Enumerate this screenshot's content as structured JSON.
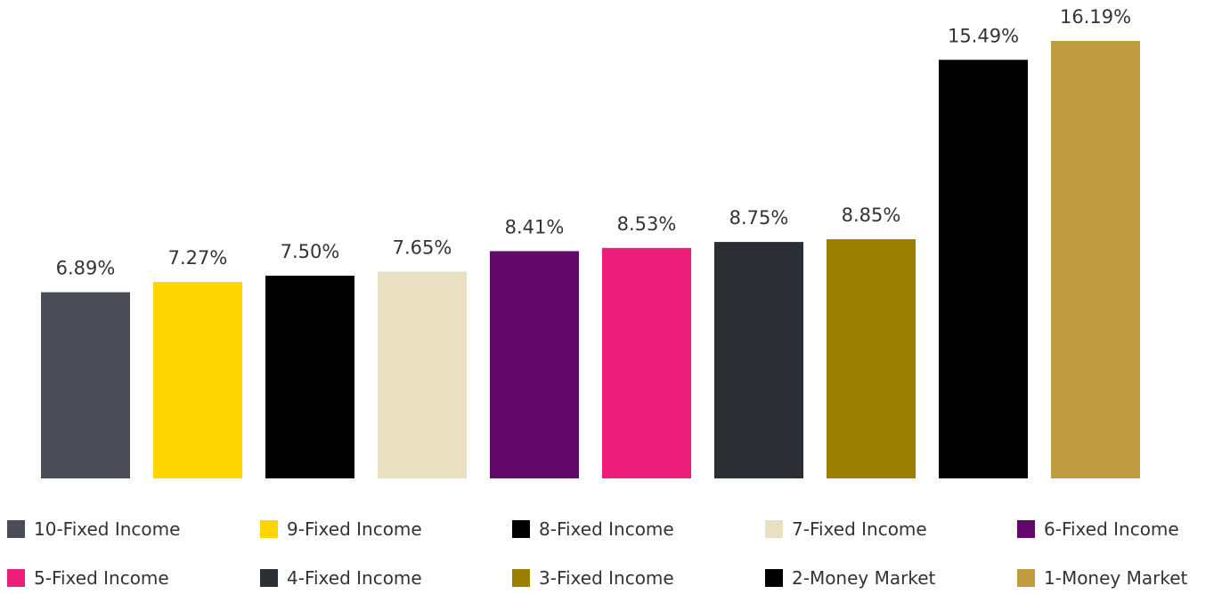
{
  "chart_data": {
    "type": "bar",
    "title": "",
    "xlabel": "",
    "ylabel": "",
    "categories": [
      "10-Fixed Income",
      "9-Fixed Income",
      "8-Fixed Income",
      "7-Fixed Income",
      "6-Fixed Income",
      "5-Fixed Income",
      "4-Fixed Income",
      "3-Fixed Income",
      "2-Money Market",
      "1-Money Market"
    ],
    "values": [
      6.89,
      7.27,
      7.5,
      7.65,
      8.41,
      8.53,
      8.75,
      8.85,
      15.49,
      16.19
    ],
    "value_labels": [
      "6.89%",
      "7.27%",
      "7.50%",
      "7.65%",
      "8.41%",
      "8.53%",
      "8.75%",
      "8.85%",
      "15.49%",
      "16.19%"
    ],
    "colors": [
      "#4a4d55",
      "#ffd600",
      "#000000",
      "#e9dfc1",
      "#62086b",
      "#ec1e79",
      "#2b2e33",
      "#9a7f00",
      "#000000",
      "#c09b40"
    ],
    "ylim": [
      0,
      16.19
    ],
    "grid": false,
    "legend": "bottom"
  }
}
